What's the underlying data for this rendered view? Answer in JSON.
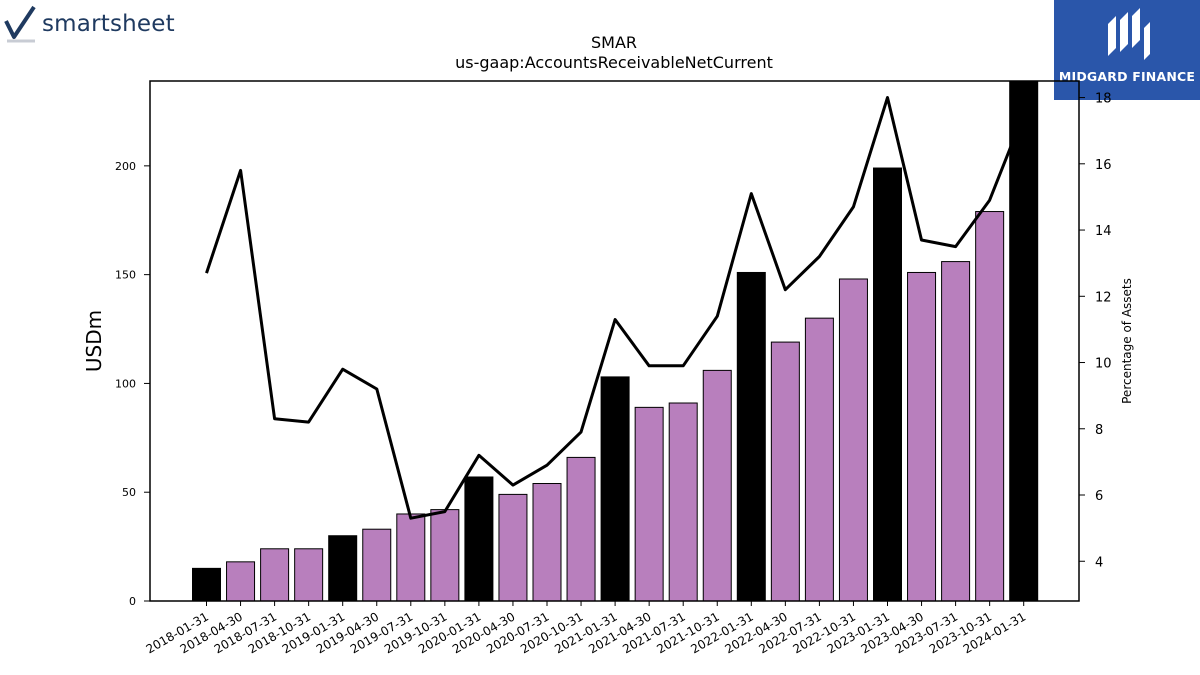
{
  "branding": {
    "left_logo_text": "smartsheet",
    "left_logo_icon": "checkmark-icon",
    "right_logo_text": "MIDGARD FINANCE",
    "right_logo_icon": "midgard-m-icon",
    "right_logo_bg": "#2a56aa"
  },
  "chart_data": {
    "type": "bar",
    "title": "SMAR",
    "subtitle": "us-gaap:AccountsReceivableNetCurrent",
    "ylabel": "USDm",
    "y2label": "Percentage of Assets",
    "ylim": [
      0,
      239
    ],
    "y2lim": [
      2.8,
      18.5
    ],
    "yticks": [
      0,
      50,
      100,
      150,
      200
    ],
    "y2ticks": [
      4,
      6,
      8,
      10,
      12,
      14,
      16,
      18
    ],
    "categories": [
      "2018-01-31",
      "2018-04-30",
      "2018-07-31",
      "2018-10-31",
      "2019-01-31",
      "2019-04-30",
      "2019-07-31",
      "2019-10-31",
      "2020-01-31",
      "2020-04-30",
      "2020-07-31",
      "2020-10-31",
      "2021-01-31",
      "2021-04-30",
      "2021-07-31",
      "2021-10-31",
      "2022-01-31",
      "2022-04-30",
      "2022-07-31",
      "2022-10-31",
      "2023-01-31",
      "2023-04-30",
      "2023-07-31",
      "2023-10-31",
      "2024-01-31"
    ],
    "series": [
      {
        "kind": "bar",
        "values": [
          15,
          18,
          24,
          24,
          30,
          33,
          40,
          42,
          57,
          49,
          54,
          66,
          103,
          89,
          91,
          106,
          151,
          119,
          130,
          148,
          199,
          151,
          156,
          179,
          239
        ],
        "colors_by_quarter": {
          "fiscal_year_end": "#000000",
          "other": "#b87fbd"
        }
      },
      {
        "kind": "line",
        "axis": "right",
        "color": "#000000",
        "values": [
          12.7,
          15.8,
          8.3,
          8.2,
          9.8,
          9.2,
          5.3,
          5.5,
          7.2,
          6.3,
          6.9,
          7.9,
          11.3,
          9.9,
          9.9,
          11.4,
          15.1,
          12.2,
          13.2,
          14.7,
          18.0,
          13.7,
          13.5,
          14.9,
          17.5
        ]
      }
    ],
    "grid": false,
    "legend": "none"
  }
}
